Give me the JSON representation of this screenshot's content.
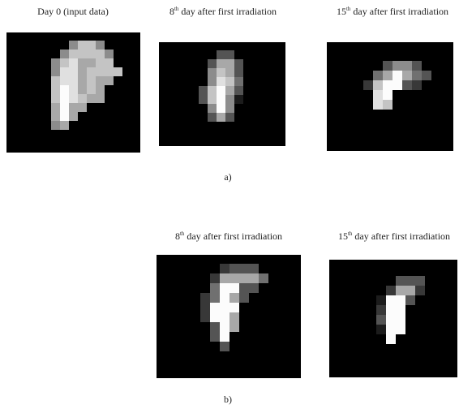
{
  "figure": {
    "part_a": {
      "panels": [
        {
          "title": "Day 0 (input data)"
        },
        {
          "title": {
            "number": "8",
            "suffix": "th",
            "rest": "day after first irradiation"
          }
        },
        {
          "title": {
            "number": "15",
            "suffix": "th",
            "rest": "day after first irradiation"
          }
        }
      ],
      "label": "a)"
    },
    "part_b": {
      "panels": [
        {
          "title": {
            "number": "8",
            "suffix": "th",
            "rest": "day after first irradiation"
          }
        },
        {
          "title": {
            "number": "15",
            "suffix": "th",
            "rest": "day after first irradiation"
          }
        }
      ],
      "label": "b)"
    }
  }
}
